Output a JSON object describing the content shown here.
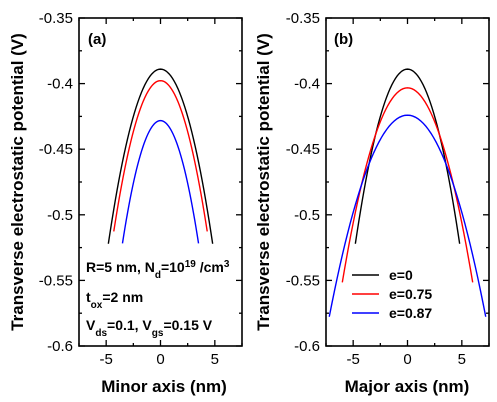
{
  "chart_data": [
    {
      "type": "line",
      "panel_label": "(a)",
      "xlabel": "Minor axis (nm)",
      "ylabel": "Transverse electrostatic potential (V)",
      "xlim": [
        -7.5,
        7.5
      ],
      "ylim": [
        -0.6,
        -0.35
      ],
      "xticks": [
        -5,
        0,
        5
      ],
      "yticks": [
        -0.35,
        -0.4,
        -0.45,
        -0.5,
        -0.55,
        -0.6
      ],
      "ytick_labels": [
        "-0.35",
        "-0.4",
        "-0.45",
        "-0.5",
        "-0.55",
        "-0.6"
      ],
      "series": [
        {
          "color": "#000000",
          "x": [
            -4.8,
            -3,
            -1.5,
            0,
            1.5,
            3,
            4.8
          ],
          "y": [
            -0.521,
            -0.444,
            -0.401,
            -0.387,
            -0.401,
            -0.444,
            -0.521
          ]
        },
        {
          "color": "#ff0000",
          "x": [
            -4.3,
            -3,
            -1.5,
            0,
            1.5,
            3,
            4.3
          ],
          "y": [
            -0.513,
            -0.453,
            -0.412,
            -0.398,
            -0.412,
            -0.453,
            -0.513
          ]
        },
        {
          "color": "#0000ff",
          "x": [
            -3.5,
            -2,
            -1,
            0,
            1,
            2,
            3.5
          ],
          "y": [
            -0.519,
            -0.468,
            -0.433,
            -0.421,
            -0.433,
            -0.468,
            -0.519
          ]
        }
      ],
      "annotations": {
        "line1_main": "R=5 nm, N",
        "line1_sub": "d",
        "line1_eq": "=10",
        "line1_sup": "19",
        "line1_unit": " /cm",
        "line1_unit_sup": "3",
        "line2_main": "t",
        "line2_sub": "ox",
        "line2_rest": "=2 nm",
        "line3_v1": "V",
        "line3_sub1": "ds",
        "line3_mid": "=0.1, V",
        "line3_sub2": "gs",
        "line3_end": "=0.15 V"
      }
    },
    {
      "type": "line",
      "panel_label": "(b)",
      "xlabel": "Major axis (nm)",
      "ylabel": "Transverse electrostatic potential (V)",
      "xlim": [
        -7.5,
        7.5
      ],
      "ylim": [
        -0.6,
        -0.35
      ],
      "xticks": [
        -5,
        0,
        5
      ],
      "yticks": [
        -0.35,
        -0.4,
        -0.45,
        -0.5,
        -0.55,
        -0.6
      ],
      "ytick_labels": [
        "-0.35",
        "-0.4",
        "-0.45",
        "-0.5",
        "-0.55",
        "-0.6"
      ],
      "legend_position": "lower-center",
      "series": [
        {
          "name": "e=0",
          "color": "#000000",
          "x": [
            -4.8,
            -3,
            -1.5,
            0,
            1.5,
            3,
            4.8
          ],
          "y": [
            -0.521,
            -0.444,
            -0.401,
            -0.387,
            -0.401,
            -0.444,
            -0.521
          ]
        },
        {
          "name": "e=0.75",
          "color": "#ff0000",
          "x": [
            -6,
            -4,
            -2,
            0,
            2,
            4,
            6
          ],
          "y": [
            -0.549,
            -0.475,
            -0.419,
            -0.398,
            -0.419,
            -0.475,
            -0.549
          ]
        },
        {
          "name": "e=0.87",
          "color": "#0000ff",
          "x": [
            -7.2,
            -5,
            -2.5,
            0,
            2.5,
            5,
            7.2
          ],
          "y": [
            -0.578,
            -0.497,
            -0.445,
            -0.421,
            -0.445,
            -0.497,
            -0.578
          ]
        }
      ]
    }
  ]
}
